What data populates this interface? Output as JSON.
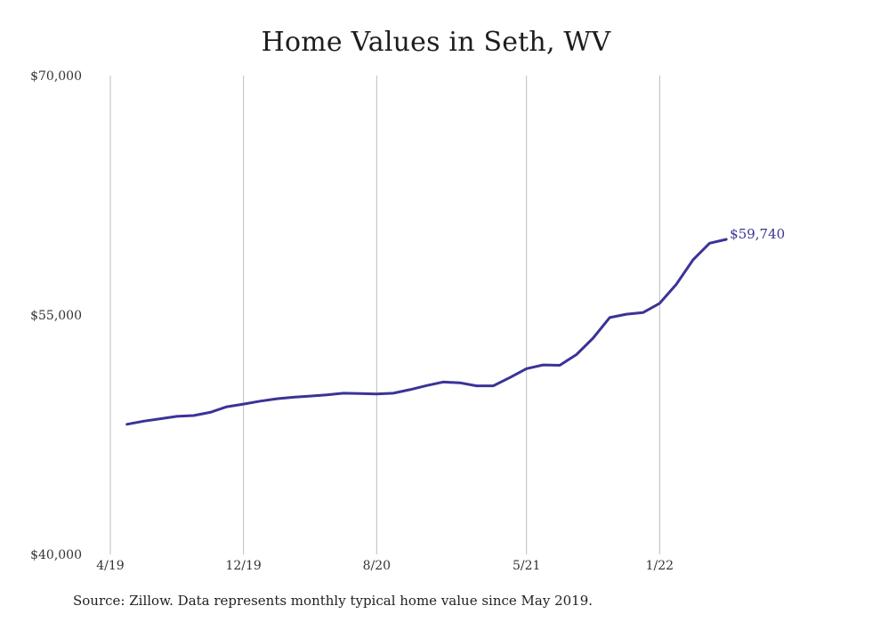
{
  "title": "Home Values in Seth, WV",
  "footer": "Source: Zillow. Data represents monthly typical home value since May 2019.",
  "colors": {
    "line": "#3b3396",
    "grid": "#bdbdbd",
    "text": "#333333"
  },
  "chart_data": {
    "type": "line",
    "title": "Home Values in Seth, WV",
    "xlabel": "",
    "ylabel": "",
    "ylim": [
      40000,
      70000
    ],
    "yticks": [
      {
        "value": 40000,
        "label": "$40,000"
      },
      {
        "value": 55000,
        "label": "$55,000"
      },
      {
        "value": 70000,
        "label": "$70,000"
      }
    ],
    "xticks": [
      {
        "month": "2019-04",
        "label": "4/19"
      },
      {
        "month": "2019-12",
        "label": "12/19"
      },
      {
        "month": "2020-08",
        "label": "8/20"
      },
      {
        "month": "2021-05",
        "label": "5/21"
      },
      {
        "month": "2022-01",
        "label": "1/22"
      }
    ],
    "x_range": [
      "2019-04",
      "2022-09"
    ],
    "grid": "vertical",
    "series": [
      {
        "x": [
          "2019-05",
          "2019-06",
          "2019-07",
          "2019-08",
          "2019-09",
          "2019-10",
          "2019-11",
          "2019-12",
          "2020-01",
          "2020-02",
          "2020-03",
          "2020-04",
          "2020-05",
          "2020-06",
          "2020-07",
          "2020-08",
          "2020-09",
          "2020-10",
          "2020-11",
          "2020-12",
          "2021-01",
          "2021-02",
          "2021-03",
          "2021-04",
          "2021-05",
          "2021-06",
          "2021-07",
          "2021-08",
          "2021-09",
          "2021-10",
          "2021-11",
          "2021-12",
          "2022-01",
          "2022-02",
          "2022-03",
          "2022-04",
          "2022-05"
        ],
        "values": [
          48150,
          48350,
          48500,
          48650,
          48700,
          48900,
          49250,
          49420,
          49600,
          49750,
          49850,
          49920,
          50000,
          50100,
          50080,
          50050,
          50100,
          50320,
          50580,
          50800,
          50750,
          50560,
          50560,
          51080,
          51640,
          51870,
          51850,
          52520,
          53550,
          54840,
          55050,
          55150,
          55730,
          56920,
          58450,
          59500,
          59740
        ]
      }
    ],
    "end_label": "$59,740"
  }
}
